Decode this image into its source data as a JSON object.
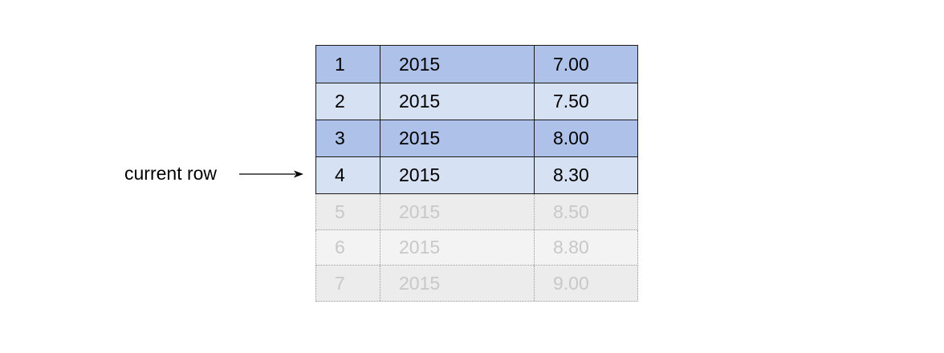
{
  "annotation": {
    "label": "current row",
    "target_row": "4"
  },
  "colors": {
    "dark_row_fill": "#aec2e9",
    "light_row_fill": "#d6e1f3",
    "faded_row_fill_a": "#ececec",
    "faded_row_fill_b": "#f3f3f3",
    "faded_text": "#c8c8c8",
    "border": "#1a1a1a",
    "faded_border": "#9a9a9a"
  },
  "rows": [
    {
      "id": "1",
      "year": "2015",
      "value": "7.00",
      "state": "active",
      "shade": "dark"
    },
    {
      "id": "2",
      "year": "2015",
      "value": "7.50",
      "state": "active",
      "shade": "light"
    },
    {
      "id": "3",
      "year": "2015",
      "value": "8.00",
      "state": "active",
      "shade": "dark"
    },
    {
      "id": "4",
      "year": "2015",
      "value": "8.30",
      "state": "active",
      "shade": "light"
    },
    {
      "id": "5",
      "year": "2015",
      "value": "8.50",
      "state": "faded",
      "shade": "a"
    },
    {
      "id": "6",
      "year": "2015",
      "value": "8.80",
      "state": "faded",
      "shade": "b"
    },
    {
      "id": "7",
      "year": "2015",
      "value": "9.00",
      "state": "faded",
      "shade": "a"
    }
  ]
}
